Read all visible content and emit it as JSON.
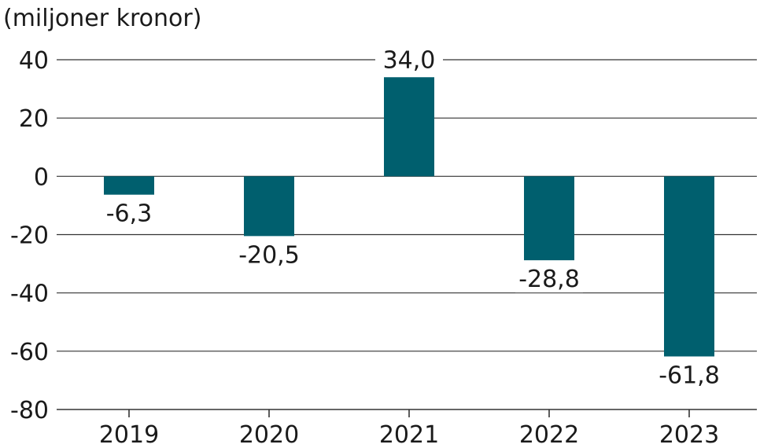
{
  "chart_data": {
    "type": "bar",
    "unit_label": "(miljoner kronor)",
    "categories": [
      "2019",
      "2020",
      "2021",
      "2022",
      "2023"
    ],
    "values": [
      -6.3,
      -20.5,
      34.0,
      -28.8,
      -61.8
    ],
    "value_labels": [
      "-6,3",
      "-20,5",
      "34,0",
      "-28,8",
      "-61,8"
    ],
    "y_ticks": [
      40,
      20,
      0,
      -20,
      -40,
      -60,
      -80
    ],
    "y_tick_labels": [
      "40",
      "20",
      "0",
      "-20",
      "-40",
      "-60",
      "-80"
    ],
    "ylim": [
      -80,
      40
    ],
    "grid": true,
    "colors": {
      "bar": "#005F6E",
      "text": "#1a1a1a",
      "grid": "#333333"
    }
  }
}
